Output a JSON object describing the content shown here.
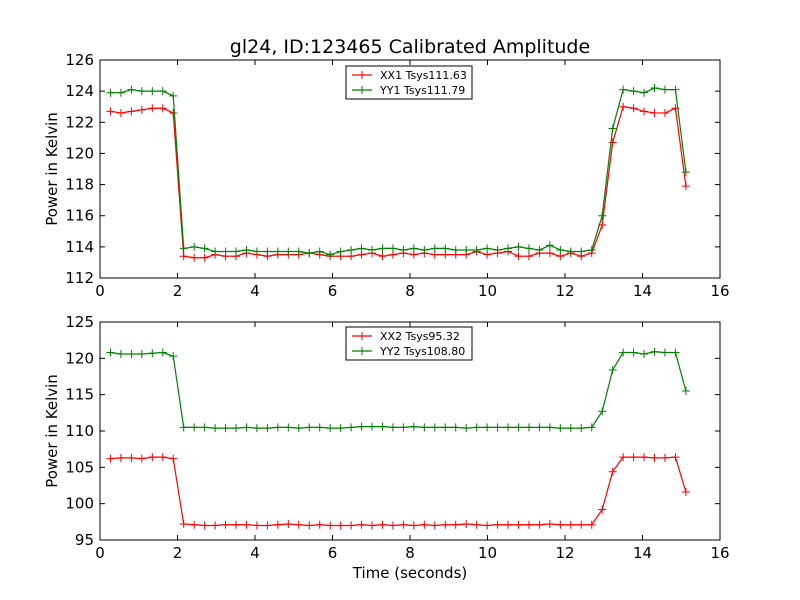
{
  "figure": {
    "title": "gl24, ID:123465 Calibrated Amplitude",
    "xlabel": "Time (seconds)"
  },
  "chart_data": [
    {
      "type": "line",
      "ylabel": "Power in Kelvin",
      "xlim": [
        0,
        16
      ],
      "ylim": [
        112,
        126
      ],
      "xticks": [
        "0",
        "2",
        "4",
        "6",
        "8",
        "10",
        "12",
        "14",
        "16"
      ],
      "yticks": [
        "112",
        "114",
        "116",
        "118",
        "120",
        "122",
        "124",
        "126"
      ],
      "legend_position": "top-center",
      "grid": false,
      "x": [
        0.27,
        0.54,
        0.81,
        1.08,
        1.35,
        1.62,
        1.89,
        2.16,
        2.43,
        2.7,
        2.97,
        3.24,
        3.51,
        3.78,
        4.05,
        4.32,
        4.59,
        4.86,
        5.13,
        5.4,
        5.67,
        5.94,
        6.21,
        6.48,
        6.75,
        7.02,
        7.29,
        7.56,
        7.83,
        8.1,
        8.37,
        8.64,
        8.91,
        9.18,
        9.45,
        9.72,
        9.99,
        10.26,
        10.53,
        10.8,
        11.07,
        11.34,
        11.61,
        11.88,
        12.15,
        12.42,
        12.69,
        12.96,
        13.23,
        13.5,
        13.77,
        14.04,
        14.31,
        14.58,
        14.85,
        15.12
      ],
      "series": [
        {
          "name": "XX1 Tsys111.63",
          "color": "#ff0000",
          "values": [
            122.7,
            122.6,
            122.7,
            122.8,
            122.9,
            122.9,
            122.6,
            113.4,
            113.3,
            113.3,
            113.5,
            113.4,
            113.4,
            113.6,
            113.5,
            113.4,
            113.5,
            113.5,
            113.5,
            113.6,
            113.5,
            113.4,
            113.4,
            113.4,
            113.5,
            113.6,
            113.4,
            113.5,
            113.6,
            113.5,
            113.6,
            113.5,
            113.5,
            113.5,
            113.5,
            113.7,
            113.5,
            113.6,
            113.7,
            113.4,
            113.4,
            113.6,
            113.6,
            113.4,
            113.6,
            113.4,
            113.6,
            115.4,
            120.7,
            123.0,
            122.9,
            122.7,
            122.6,
            122.6,
            122.9,
            117.9
          ]
        },
        {
          "name": "YY1 Tsys111.79",
          "color": "#008000",
          "values": [
            123.9,
            123.9,
            124.1,
            124.0,
            124.0,
            124.0,
            123.7,
            113.9,
            114.0,
            113.9,
            113.7,
            113.7,
            113.7,
            113.8,
            113.7,
            113.7,
            113.7,
            113.7,
            113.7,
            113.6,
            113.7,
            113.5,
            113.7,
            113.8,
            113.9,
            113.8,
            113.9,
            113.9,
            113.8,
            113.9,
            113.8,
            113.9,
            113.9,
            113.8,
            113.8,
            113.8,
            113.9,
            113.8,
            113.9,
            114.0,
            113.9,
            113.8,
            114.1,
            113.8,
            113.7,
            113.7,
            113.8,
            116.0,
            121.6,
            124.1,
            124.0,
            123.9,
            124.2,
            124.1,
            124.1,
            118.8
          ]
        }
      ]
    },
    {
      "type": "line",
      "ylabel": "Power in Kelvin",
      "xlim": [
        0,
        16
      ],
      "ylim": [
        95,
        125
      ],
      "xticks": [
        "0",
        "2",
        "4",
        "6",
        "8",
        "10",
        "12",
        "14",
        "16"
      ],
      "yticks": [
        "95",
        "100",
        "105",
        "110",
        "115",
        "120",
        "125"
      ],
      "legend_position": "top-center",
      "grid": false,
      "x": [
        0.27,
        0.54,
        0.81,
        1.08,
        1.35,
        1.62,
        1.89,
        2.16,
        2.43,
        2.7,
        2.97,
        3.24,
        3.51,
        3.78,
        4.05,
        4.32,
        4.59,
        4.86,
        5.13,
        5.4,
        5.67,
        5.94,
        6.21,
        6.48,
        6.75,
        7.02,
        7.29,
        7.56,
        7.83,
        8.1,
        8.37,
        8.64,
        8.91,
        9.18,
        9.45,
        9.72,
        9.99,
        10.26,
        10.53,
        10.8,
        11.07,
        11.34,
        11.61,
        11.88,
        12.15,
        12.42,
        12.69,
        12.96,
        13.23,
        13.5,
        13.77,
        14.04,
        14.31,
        14.58,
        14.85,
        15.12
      ],
      "series": [
        {
          "name": "XX2 Tsys95.32",
          "color": "#ff0000",
          "values": [
            106.2,
            106.3,
            106.3,
            106.2,
            106.4,
            106.4,
            106.2,
            97.2,
            97.1,
            97.0,
            97.0,
            97.1,
            97.1,
            97.1,
            97.0,
            97.0,
            97.1,
            97.2,
            97.1,
            97.0,
            97.1,
            97.0,
            97.0,
            97.0,
            97.1,
            97.0,
            97.1,
            97.0,
            97.1,
            97.0,
            97.1,
            97.0,
            97.1,
            97.1,
            97.2,
            97.1,
            97.0,
            97.1,
            97.1,
            97.1,
            97.1,
            97.1,
            97.2,
            97.1,
            97.1,
            97.1,
            97.1,
            99.2,
            104.4,
            106.4,
            106.4,
            106.4,
            106.3,
            106.3,
            106.4,
            101.6
          ]
        },
        {
          "name": "YY2 Tsys108.80",
          "color": "#008000",
          "values": [
            120.8,
            120.6,
            120.6,
            120.6,
            120.7,
            120.8,
            120.3,
            110.5,
            110.5,
            110.5,
            110.4,
            110.4,
            110.4,
            110.5,
            110.4,
            110.4,
            110.5,
            110.5,
            110.4,
            110.5,
            110.5,
            110.4,
            110.4,
            110.5,
            110.6,
            110.6,
            110.6,
            110.5,
            110.5,
            110.6,
            110.5,
            110.5,
            110.5,
            110.5,
            110.4,
            110.5,
            110.5,
            110.5,
            110.5,
            110.5,
            110.5,
            110.5,
            110.5,
            110.4,
            110.4,
            110.4,
            110.5,
            112.7,
            118.4,
            120.8,
            120.8,
            120.6,
            120.9,
            120.8,
            120.8,
            115.5
          ]
        }
      ]
    }
  ]
}
